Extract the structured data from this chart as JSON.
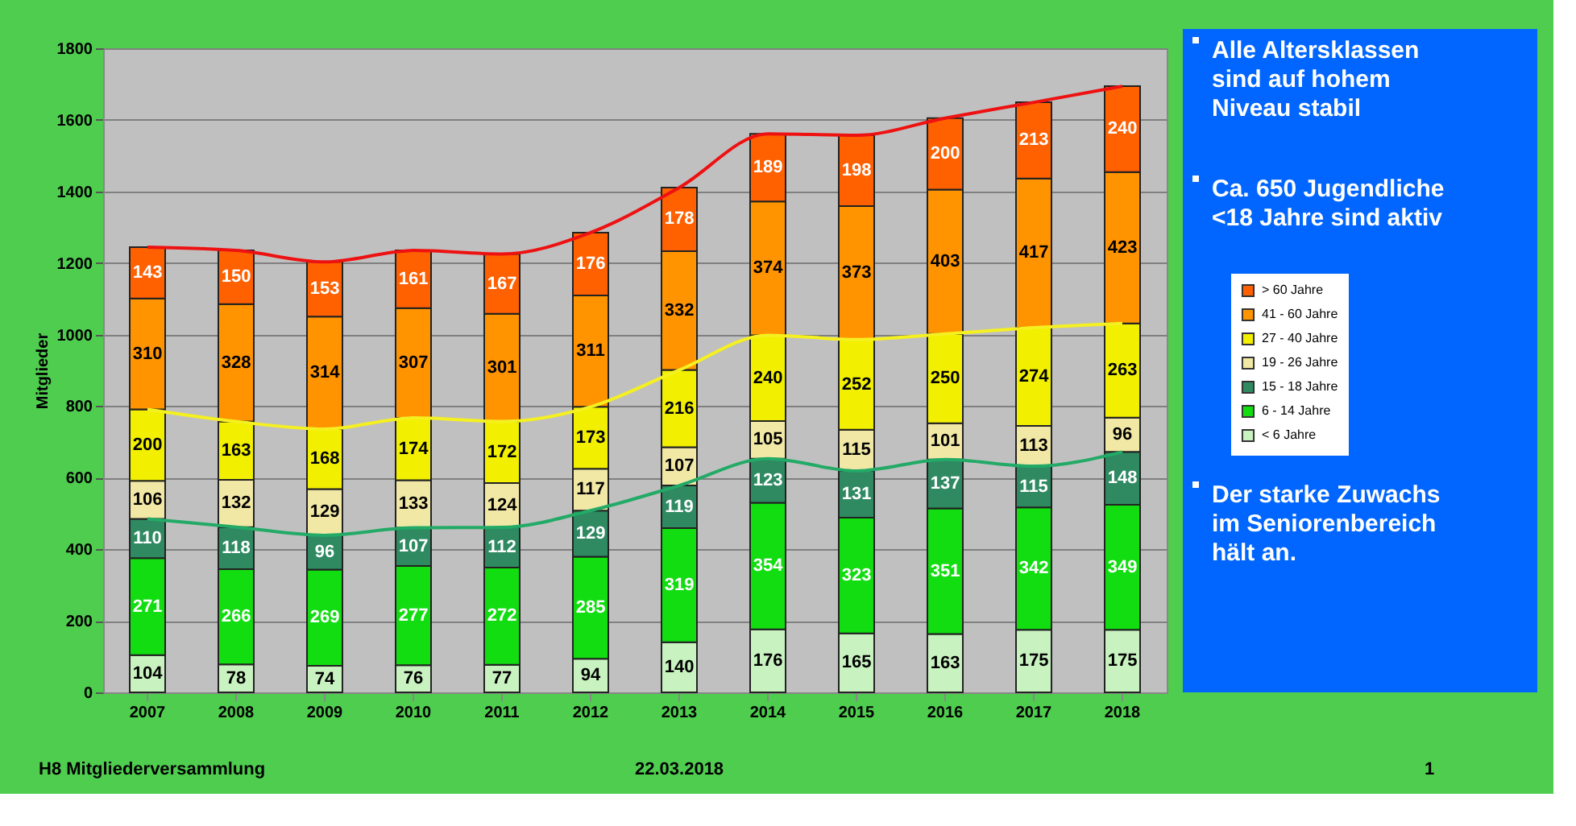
{
  "chart_data": {
    "type": "bar",
    "stacked": true,
    "ylabel": "Mitglieder",
    "categories": [
      "2007",
      "2008",
      "2009",
      "2010",
      "2011",
      "2012",
      "2013",
      "2014",
      "2015",
      "2016",
      "2017",
      "2018"
    ],
    "ylim": [
      0,
      1800
    ],
    "yticks": [
      0,
      200,
      400,
      600,
      800,
      1000,
      1200,
      1400,
      1600,
      1800
    ],
    "grid": "y",
    "legend": "right",
    "series": [
      {
        "name": "< 6 Jahre",
        "color": "#c8f2c0",
        "values": [
          104,
          78,
          74,
          76,
          77,
          94,
          140,
          176,
          165,
          163,
          175,
          175
        ],
        "value_labels": [
          "104",
          "78",
          "74",
          "76",
          "77",
          "94",
          "140",
          "176",
          "165",
          "163",
          "175",
          "175"
        ]
      },
      {
        "name": "6 - 14 Jahre",
        "color": "#11dd11",
        "values": [
          271,
          266,
          269,
          277,
          272,
          285,
          319,
          354,
          323,
          351,
          342,
          349
        ],
        "value_labels": [
          "271",
          "266",
          "269",
          "277",
          "272",
          "285",
          "319",
          "354",
          "323",
          "351",
          "342",
          "349"
        ]
      },
      {
        "name": "15 - 18 Jahre",
        "color": "#2f8a62",
        "values": [
          110,
          118,
          96,
          107,
          112,
          129,
          119,
          123,
          131,
          137,
          115,
          148
        ],
        "value_labels": [
          "110",
          "118",
          "96",
          "107",
          "112",
          "129",
          "119",
          "123",
          "131",
          "137",
          "115",
          "148"
        ]
      },
      {
        "name": "19 - 26 Jahre",
        "color": "#f2e8a6",
        "values": [
          106,
          132,
          129,
          133,
          124,
          117,
          107,
          105,
          115,
          101,
          113,
          96
        ],
        "value_labels": [
          "106",
          "132",
          "129",
          "133",
          "124",
          "117",
          "107",
          "105",
          "115",
          "101",
          "113",
          "96"
        ]
      },
      {
        "name": "27 - 40 Jahre",
        "color": "#f2f000",
        "values": [
          200,
          163,
          168,
          174,
          172,
          173,
          216,
          240,
          252,
          250,
          274,
          263
        ],
        "value_labels": [
          "200",
          "163",
          "168",
          "174",
          "172",
          "173",
          "216",
          "240",
          "252",
          "250",
          "274",
          "263"
        ]
      },
      {
        "name": "41 - 60 Jahre",
        "color": "#ff9400",
        "values": [
          310,
          328,
          314,
          307,
          301,
          311,
          332,
          374,
          373,
          403,
          417,
          423
        ],
        "value_labels": [
          "310",
          "328",
          "314",
          "307",
          "301",
          "311",
          "332",
          "374",
          "373",
          "403",
          "417",
          "423"
        ]
      },
      {
        "name": "> 60 Jahre",
        "color": "#ff6000",
        "values": [
          143,
          150,
          153,
          161,
          167,
          176,
          178,
          189,
          198,
          200,
          213,
          240
        ],
        "value_labels": [
          "143",
          "150",
          "153",
          "161",
          "167",
          "176",
          "178",
          "189",
          "198",
          "200",
          "213",
          "240"
        ]
      },
      {
        "type": "line",
        "color": "#22aa66",
        "values": [
          485,
          462,
          439,
          460,
          461,
          508,
          578,
          653,
          619,
          651,
          632,
          672
        ]
      },
      {
        "type": "line",
        "color": "#f5f020",
        "values": [
          791,
          757,
          736,
          767,
          757,
          798,
          901,
          998,
          986,
          1002,
          1019,
          1031
        ]
      },
      {
        "type": "line",
        "color": "#ee1111",
        "values": [
          1244,
          1235,
          1203,
          1235,
          1225,
          1285,
          1411,
          1561,
          1557,
          1605,
          1649,
          1694
        ]
      }
    ],
    "annotations": [
      "Alle Altersklassen sind auf hohem Niveau stabil",
      "Ca. 650 Jugendliche <18 Jahre sind aktiv",
      "Der starke Zuwachs im Seniorenbereich hält an.",
      "H8 Mitgliederversammlung",
      "22.03.2018",
      "1"
    ]
  }
}
